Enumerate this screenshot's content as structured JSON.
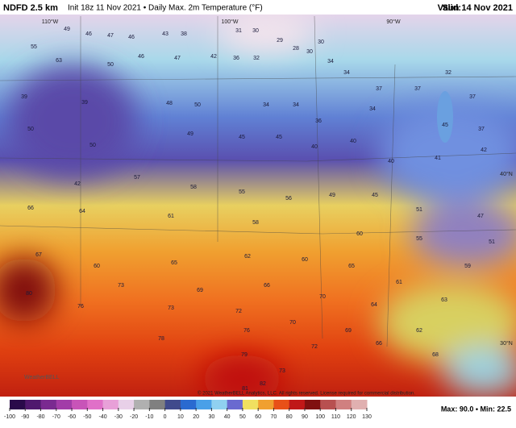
{
  "header": {
    "title": "NDFD 2.5 km",
    "subtitle": "Init 18z 11 Nov 2021 • Daily Max. 2m Temperature (°F)",
    "valid_label": "Valid:",
    "valid": "Sun 14 Nov 2021"
  },
  "map": {
    "graticule": [
      "110°W",
      "100°W",
      "90°W",
      "40°N",
      "30°N"
    ],
    "values": [
      49,
      46,
      47,
      46,
      43,
      38,
      31,
      30,
      29,
      28,
      30,
      30,
      55,
      63,
      50,
      46,
      47,
      42,
      36,
      32,
      34,
      34,
      37,
      37,
      32,
      37,
      39,
      39,
      48,
      50,
      34,
      34,
      36,
      34,
      45,
      37,
      50,
      50,
      49,
      45,
      45,
      40,
      40,
      40,
      41,
      42,
      42,
      57,
      58,
      55,
      56,
      49,
      45,
      51,
      47,
      66,
      64,
      61,
      58,
      60,
      55,
      51,
      67,
      60,
      65,
      62,
      60,
      65,
      61,
      59,
      80,
      73,
      69,
      66,
      70,
      64,
      63,
      76,
      73,
      72,
      70,
      69,
      62,
      78,
      76,
      72,
      66,
      79,
      82,
      81,
      73,
      68
    ]
  },
  "colorbar": {
    "ticks": [
      -100,
      -90,
      -80,
      -70,
      -60,
      -50,
      -40,
      -30,
      -20,
      -10,
      0,
      10,
      20,
      30,
      40,
      50,
      60,
      70,
      80,
      90,
      100,
      110,
      120,
      130
    ],
    "colors": [
      "#2a0a4a",
      "#50186e",
      "#7a2a90",
      "#a23ca8",
      "#c854b8",
      "#e070c8",
      "#e8a0d8",
      "#e8d0e8",
      "#b0b0b0",
      "#808080",
      "#404a8c",
      "#2a6ad0",
      "#4aa0e8",
      "#90d0f0",
      "#6a6ad0",
      "#f0e060",
      "#f0a030",
      "#e85018",
      "#c01818",
      "#801010",
      "#b85050",
      "#d08080",
      "#e0b0b0"
    ]
  },
  "footer": {
    "credit": "© 2021 WeatherBELL Analytics, LLC. All rights reserved. License required for commercial distribution.",
    "stats": "Max: 90.0 • Min: 22.5",
    "logo": "WeatherBELL"
  }
}
